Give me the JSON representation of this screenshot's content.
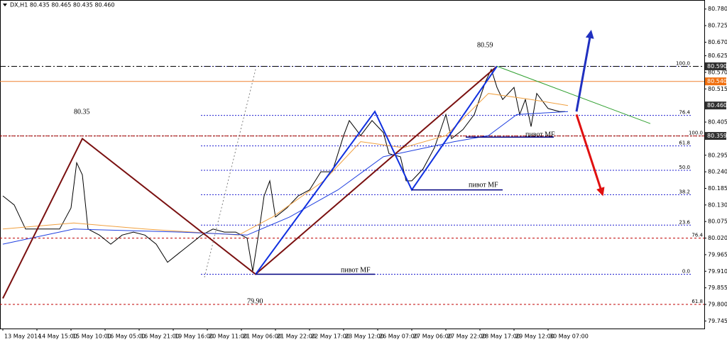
{
  "chart_data": {
    "type": "line",
    "title": "DX,H1  80.435 80.465 80.435 80.460",
    "xlim": [
      -1,
      247
    ],
    "ylim": [
      79.72,
      80.81
    ],
    "xticks": [
      {
        "value": 0,
        "label": "13 May 2014"
      },
      {
        "value": 12,
        "label": "14 May 15:00"
      },
      {
        "value": 24,
        "label": "15 May 10:00"
      },
      {
        "value": 36,
        "label": "16 May 05:00"
      },
      {
        "value": 48,
        "label": "16 May 21:00"
      },
      {
        "value": 60,
        "label": "19 May 16:00"
      },
      {
        "value": 72,
        "label": "20 May 11:00"
      },
      {
        "value": 84,
        "label": "21 May 06:00"
      },
      {
        "value": 96,
        "label": "21 May 22:00"
      },
      {
        "value": 108,
        "label": "22 May 17:00"
      },
      {
        "value": 120,
        "label": "23 May 12:00"
      },
      {
        "value": 132,
        "label": "26 May 07:00"
      },
      {
        "value": 144,
        "label": "27 May 06:00"
      },
      {
        "value": 156,
        "label": "27 May 22:00"
      },
      {
        "value": 168,
        "label": "28 May 17:00"
      },
      {
        "value": 180,
        "label": "29 May 12:00"
      },
      {
        "value": 192,
        "label": "30 May 07:00"
      }
    ],
    "yticks": [
      {
        "value": 80.78,
        "label": "80.780"
      },
      80.725,
      {
        "value": 80.67,
        "label": "80.670"
      },
      80.625,
      {
        "value": 80.57,
        "label": "80.570"
      },
      80.515,
      80.405,
      80.295,
      {
        "value": 80.24,
        "label": "80.240"
      },
      80.185,
      {
        "value": 80.13,
        "label": "80.130"
      },
      80.075,
      {
        "value": 80.02,
        "label": "80.020"
      },
      79.965,
      {
        "value": 79.91,
        "label": "79.910"
      },
      79.855,
      {
        "value": 79.8,
        "label": "79.800"
      },
      79.745
    ],
    "series": [
      {
        "color": "#000000",
        "width": 1,
        "x": [
          0,
          4,
          8,
          12,
          16,
          20,
          24,
          26,
          28,
          30,
          34,
          38,
          42,
          46,
          50,
          54,
          58,
          62,
          66,
          70,
          74,
          78,
          82,
          86,
          88,
          90,
          92,
          94,
          96,
          100,
          104,
          108,
          112,
          116,
          120,
          122,
          126,
          130,
          134,
          136,
          140,
          142,
          144,
          148,
          152,
          156,
          158,
          162,
          166,
          170,
          172,
          174,
          176,
          180,
          182,
          184,
          186,
          188,
          192,
          196,
          198
        ],
        "values": [
          80.16,
          80.13,
          80.05,
          80.05,
          80.05,
          80.05,
          80.12,
          80.27,
          80.23,
          80.05,
          80.03,
          80.0,
          80.03,
          80.04,
          80.03,
          80.0,
          79.94,
          79.97,
          80.0,
          80.03,
          80.05,
          80.04,
          80.04,
          80.02,
          79.91,
          80.03,
          80.16,
          80.21,
          80.09,
          80.12,
          80.16,
          80.18,
          80.24,
          80.24,
          80.36,
          80.41,
          80.36,
          80.41,
          80.37,
          80.3,
          80.29,
          80.21,
          80.21,
          80.25,
          80.32,
          80.43,
          80.35,
          80.38,
          80.43,
          80.54,
          80.58,
          80.52,
          80.48,
          80.52,
          80.43,
          80.48,
          80.39,
          80.5,
          80.45,
          80.44,
          80.44
        ]
      },
      {
        "color": "#f0a040",
        "width": 1,
        "x": [
          0,
          25,
          50,
          83,
          95,
          113,
          126,
          141,
          156,
          171,
          186,
          199
        ],
        "values": [
          80.05,
          80.07,
          80.05,
          80.03,
          80.09,
          80.21,
          80.34,
          80.32,
          80.36,
          80.5,
          80.48,
          80.46
        ]
      },
      {
        "color": "#2040e0",
        "width": 1,
        "x": [
          0,
          25,
          63,
          86,
          101,
          118,
          134,
          144,
          159,
          171,
          181,
          199
        ],
        "values": [
          80.0,
          80.05,
          80.04,
          80.03,
          80.09,
          80.18,
          80.29,
          80.31,
          80.34,
          80.36,
          80.43,
          80.44
        ]
      },
      {
        "color": "#7a1010",
        "width": 2,
        "x": [
          0,
          28,
          89,
          174
        ],
        "values": [
          79.82,
          80.35,
          79.9,
          80.59
        ]
      },
      {
        "color": "#1030e0",
        "width": 2,
        "x": [
          89,
          131,
          144,
          174
        ],
        "values": [
          79.9,
          80.44,
          80.18,
          80.59
        ]
      },
      {
        "color": "#30a030",
        "width": 1,
        "x": [
          174,
          228
        ],
        "values": [
          80.59,
          80.4
        ]
      },
      {
        "color": "#808080",
        "width": 1,
        "dash": true,
        "x": [
          71,
          89
        ],
        "values": [
          79.89,
          80.58
        ]
      },
      {
        "color": "#000080",
        "width": 1.5,
        "x": [
          89,
          131
        ],
        "values": [
          79.9,
          79.9
        ]
      },
      {
        "color": "#000080",
        "width": 1.5,
        "x": [
          144,
          176
        ],
        "values": [
          80.18,
          80.18
        ]
      },
      {
        "color": "#000080",
        "width": 1.5,
        "x": [
          163,
          194
        ],
        "values": [
          80.355,
          80.355
        ]
      },
      {
        "color": "#2030c0",
        "width": 3,
        "arrow": true,
        "x": [
          202,
          207
        ],
        "values": [
          80.44,
          80.7
        ]
      },
      {
        "color": "#e01010",
        "width": 3,
        "arrow": true,
        "x": [
          202,
          211
        ],
        "values": [
          80.43,
          80.17
        ]
      }
    ],
    "fib_levels": [
      {
        "label": "100.0",
        "value": 80.59
      },
      {
        "label": "76.4",
        "value": 80.427
      },
      {
        "label": "61.8",
        "value": 80.326
      },
      {
        "label": "50.0",
        "value": 80.245
      },
      {
        "label": "38.2",
        "value": 80.164
      },
      {
        "label": "23.6",
        "value": 80.063
      },
      {
        "label": "0.0",
        "value": 79.9
      }
    ],
    "fib_color": "#2020d0",
    "fib_levels_2": [
      {
        "label": "100.0",
        "value": 80.359
      },
      {
        "label": "76.4",
        "value": 80.02
      },
      {
        "label": "61.8",
        "value": 79.8
      }
    ],
    "fib_color_2": "#c00000",
    "price_labels": [
      {
        "value": 80.59,
        "label": "80.590",
        "color": "#303030",
        "line": "#000000"
      },
      {
        "value": 80.54,
        "label": "80.540",
        "color": "#f07010",
        "line": "#f08030"
      },
      {
        "value": 80.46,
        "label": "80.460",
        "color": "#303030"
      },
      {
        "value": 80.359,
        "label": "80.359",
        "color": "#303030",
        "line": "#800000"
      }
    ],
    "annotations": [
      "80.35",
      "80.59",
      "79.90",
      "пивот MF",
      "пивот MF",
      "пивот MF"
    ]
  }
}
